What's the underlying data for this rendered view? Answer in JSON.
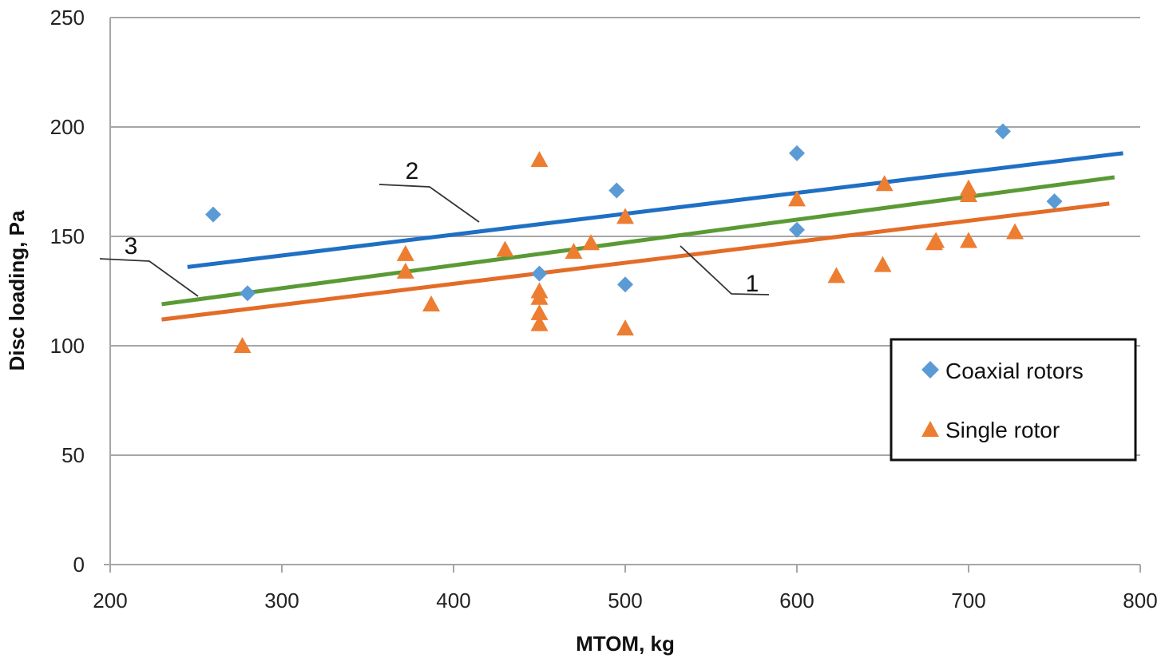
{
  "chart_data": {
    "type": "scatter",
    "title": "",
    "xlabel": "MTOM, kg",
    "ylabel": "Disc loading, Pa",
    "xlim": [
      200,
      800
    ],
    "ylim": [
      0,
      250
    ],
    "xticks": [
      200,
      300,
      400,
      500,
      600,
      700,
      800
    ],
    "yticks": [
      0,
      50,
      100,
      150,
      200,
      250
    ],
    "grid": "horizontal",
    "legend_position": "right",
    "series": [
      {
        "name": "Coaxial rotors",
        "marker": "diamond",
        "color": "#5B9BD5",
        "points": [
          [
            260,
            160
          ],
          [
            280,
            124
          ],
          [
            450,
            133
          ],
          [
            495,
            171
          ],
          [
            500,
            128
          ],
          [
            600,
            188
          ],
          [
            600,
            153
          ],
          [
            720,
            198
          ],
          [
            750,
            166
          ]
        ]
      },
      {
        "name": "Single rotor",
        "marker": "triangle",
        "color": "#ED7D31",
        "points": [
          [
            277,
            100
          ],
          [
            372,
            142
          ],
          [
            372,
            134
          ],
          [
            387,
            119
          ],
          [
            430,
            144
          ],
          [
            450,
            185
          ],
          [
            450,
            125
          ],
          [
            450,
            122
          ],
          [
            450,
            115
          ],
          [
            450,
            110
          ],
          [
            470,
            143
          ],
          [
            480,
            147
          ],
          [
            500,
            159
          ],
          [
            500,
            108
          ],
          [
            600,
            167
          ],
          [
            623,
            132
          ],
          [
            650,
            137
          ],
          [
            651,
            174
          ],
          [
            680,
            147
          ],
          [
            681,
            148
          ],
          [
            700,
            172
          ],
          [
            700,
            169
          ],
          [
            700,
            148
          ],
          [
            727,
            152
          ]
        ]
      }
    ],
    "trend_lines": [
      {
        "label": "1",
        "color": "#E36C27",
        "x": [
          230,
          782
        ],
        "y": [
          112,
          165
        ]
      },
      {
        "label": "2",
        "color": "#1F6FC4",
        "x": [
          245,
          790
        ],
        "y": [
          136,
          188
        ]
      },
      {
        "label": "3",
        "color": "#5A9A35",
        "x": [
          230,
          785
        ],
        "y": [
          119,
          177
        ]
      }
    ],
    "annotations": [
      {
        "text": "1",
        "target_line": "1"
      },
      {
        "text": "2",
        "target_line": "2"
      },
      {
        "text": "3",
        "target_line": "3"
      }
    ]
  }
}
